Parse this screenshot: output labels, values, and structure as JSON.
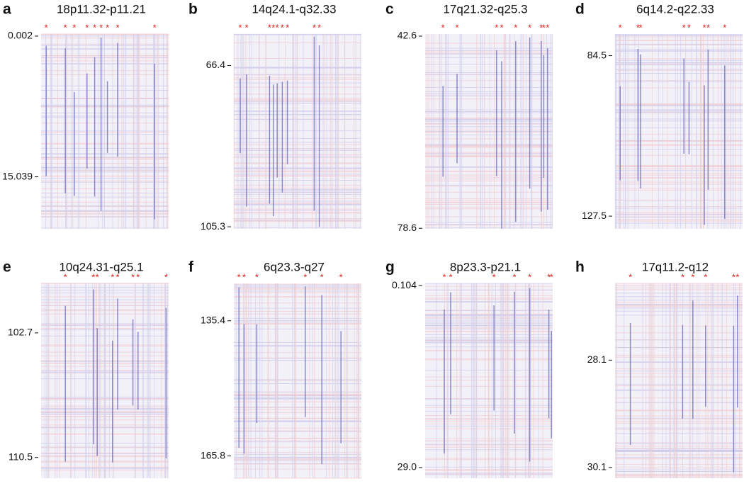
{
  "chart_data": [
    {
      "type": "heatmap",
      "label": "a",
      "title": "18p11.32-p11.21",
      "ylim": [
        -0.22,
        20.6
      ],
      "yticks": [
        0.002,
        15.039
      ],
      "xlim": [
        0,
        100
      ],
      "marker": "*",
      "marked_columns": [
        4,
        19,
        26,
        36,
        42,
        47,
        52,
        60,
        89
      ]
    },
    {
      "type": "heatmap",
      "label": "b",
      "title": "14q24.1-q32.33",
      "ylim": [
        58.8,
        105.8
      ],
      "yticks": [
        66.4,
        105.3
      ],
      "xlim": [
        0,
        100
      ],
      "marker": "*",
      "marked_columns": [
        5,
        10,
        28,
        31,
        34,
        38,
        42,
        63,
        67
      ]
    },
    {
      "type": "heatmap",
      "label": "c",
      "title": "17q21.32-q25.3",
      "ylim": [
        42.2,
        78.7
      ],
      "yticks": [
        42.6,
        78.6
      ],
      "xlim": [
        0,
        100
      ],
      "marker": "*",
      "marked_columns": [
        14,
        25,
        56,
        60,
        71,
        82,
        91,
        93,
        96
      ]
    },
    {
      "type": "heatmap",
      "label": "d",
      "title": "6q14.2-q22.33",
      "ylim": [
        78.7,
        130.9
      ],
      "yticks": [
        84.5,
        127.5
      ],
      "xlim": [
        0,
        100
      ],
      "marker": "*",
      "marked_columns": [
        4,
        18,
        20,
        54,
        58,
        70,
        73,
        86
      ]
    },
    {
      "type": "heatmap",
      "label": "e",
      "title": "10q24.31-q25.1",
      "ylim": [
        99.6,
        111.8
      ],
      "yticks": [
        102.7,
        110.5
      ],
      "xlim": [
        0,
        100
      ],
      "marker": "*",
      "marked_columns": [
        19,
        41,
        44,
        56,
        60,
        72,
        76,
        98
      ]
    },
    {
      "type": "heatmap",
      "label": "f",
      "title": "6q23.3-q27",
      "ylim": [
        127.0,
        170.8
      ],
      "yticks": [
        135.4,
        165.8
      ],
      "xlim": [
        0,
        100
      ],
      "marker": "*",
      "marked_columns": [
        4,
        8,
        18,
        56,
        69,
        84
      ]
    },
    {
      "type": "heatmap",
      "label": "g",
      "title": "8p23.3-p21.1",
      "ylim": [
        -0.24,
        30.7
      ],
      "yticks": [
        0.104,
        {
          "value": 29,
          "label": "29.0"
        }
      ],
      "xlim": [
        0,
        100
      ],
      "marker": "*",
      "marked_columns": [
        15,
        20,
        54,
        70,
        82,
        97,
        99
      ]
    },
    {
      "type": "heatmap",
      "label": "h",
      "title": "17q11.2-q12",
      "ylim": [
        26.67,
        30.3
      ],
      "yticks": [
        28.1,
        30.1
      ],
      "xlim": [
        0,
        100
      ],
      "marker": "*",
      "marked_columns": [
        12,
        53,
        61,
        71,
        93,
        96
      ]
    }
  ]
}
